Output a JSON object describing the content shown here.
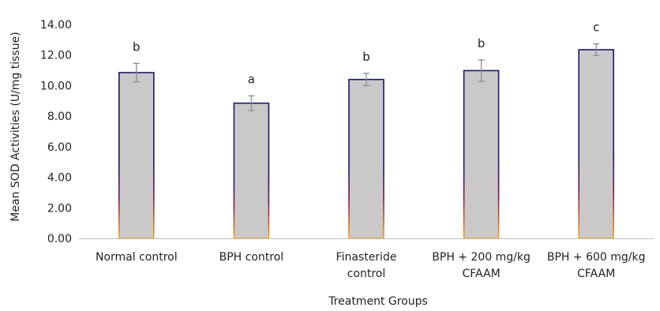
{
  "chart_data": {
    "type": "bar",
    "title": "",
    "xlabel": "Treatment Groups",
    "ylabel": "Mean SOD Activities (U/mg tissue)",
    "ylim": [
      0,
      14
    ],
    "yticks": [
      "0.00",
      "2.00",
      "4.00",
      "6.00",
      "8.00",
      "10.00",
      "12.00",
      "14.00"
    ],
    "grid": false,
    "legend": "none",
    "categories": [
      [
        "Normal control"
      ],
      [
        "BPH control"
      ],
      [
        "Finasteride",
        "control"
      ],
      [
        "BPH + 200 mg/kg",
        "CFAAM"
      ],
      [
        "BPH + 600 mg/kg",
        "CFAAM"
      ]
    ],
    "values": [
      10.85,
      8.85,
      10.4,
      10.98,
      12.35
    ],
    "errors": [
      0.6,
      0.48,
      0.4,
      0.7,
      0.38
    ],
    "significance_labels": [
      "b",
      "a",
      "b",
      "b",
      "c"
    ],
    "colors": {
      "bar_fill": "#cbc8ca",
      "bar_stroke_top": "#1a1a66",
      "bar_stroke_mid": "#7a1a4a",
      "bar_stroke_bottom": "#f5a623",
      "error_bar": "#8c8c8c",
      "axis": "#bfbfbf"
    }
  }
}
